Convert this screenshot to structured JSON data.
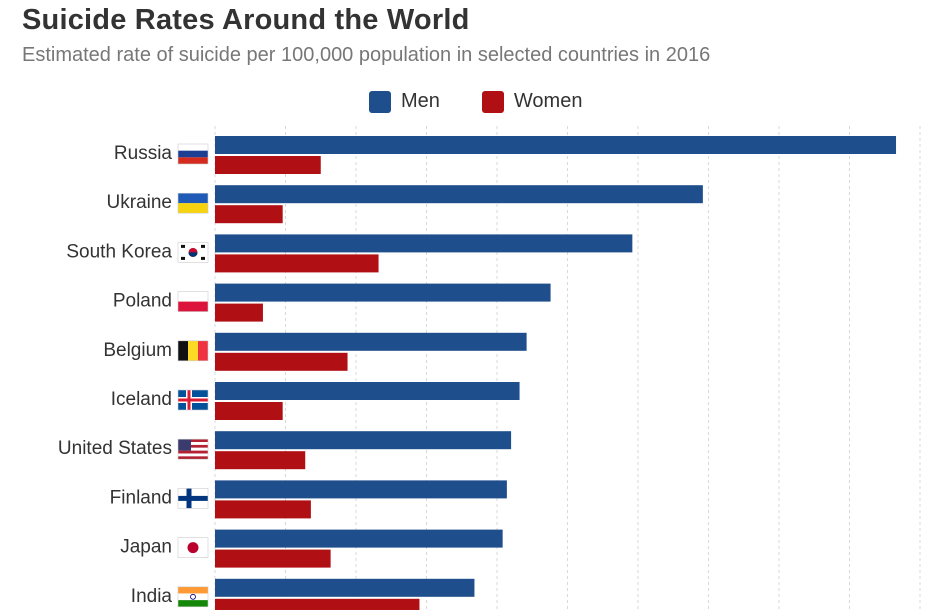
{
  "header": {
    "title": "Suicide Rates Around the World",
    "subtitle": "Estimated rate of suicide per 100,000 population in selected countries in 2016"
  },
  "colors": {
    "men": "#1f4e8c",
    "women": "#b00f14",
    "grid": "#d9d9d9"
  },
  "chart_data": {
    "type": "bar",
    "orientation": "horizontal",
    "title": "Suicide Rates Around the World",
    "subtitle": "Estimated rate of suicide per 100,000 population in selected countries in 2016",
    "legend": {
      "position": "top",
      "entries": [
        "Men",
        "Women"
      ]
    },
    "grid": "vertical-dashed",
    "xlim": [
      0,
      50
    ],
    "categories": [
      "Russia",
      "Ukraine",
      "South Korea",
      "Poland",
      "Belgium",
      "Iceland",
      "United States",
      "Finland",
      "Japan",
      "India"
    ],
    "flags": [
      "russia-flag-icon",
      "ukraine-flag-icon",
      "south-korea-flag-icon",
      "poland-flag-icon",
      "belgium-flag-icon",
      "iceland-flag-icon",
      "usa-flag-icon",
      "finland-flag-icon",
      "japan-flag-icon",
      "india-flag-icon"
    ],
    "series": [
      {
        "name": "Men",
        "values": [
          48.3,
          34.6,
          29.6,
          23.8,
          22.1,
          21.6,
          21.0,
          20.7,
          20.4,
          18.4
        ]
      },
      {
        "name": "Women",
        "values": [
          7.5,
          4.8,
          11.6,
          3.4,
          9.4,
          4.8,
          6.4,
          6.8,
          8.2,
          14.5
        ]
      }
    ]
  }
}
